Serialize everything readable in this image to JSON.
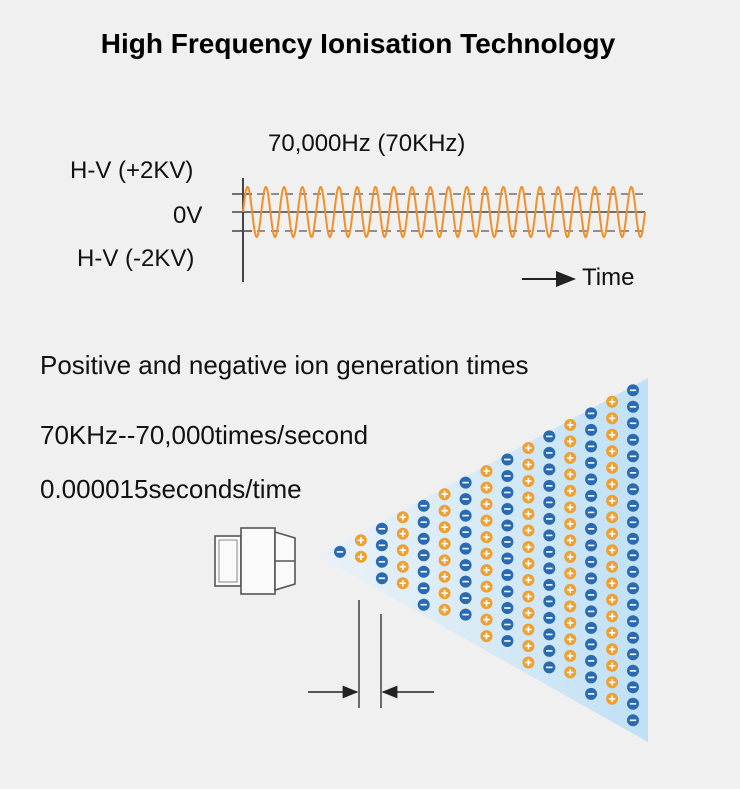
{
  "title": "High Frequency Ionisation Technology",
  "waveform": {
    "frequency_label": "70,000Hz (70KHz)",
    "positive_label": "H-V (+2KV)",
    "zero_label": "0V",
    "negative_label": "H-V (-2KV)",
    "time_label": "Time",
    "wave_color": "#f0902a",
    "axis_color": "#444444",
    "cycles": 22
  },
  "ion_generation": {
    "heading": "Positive and negative ion generation times",
    "rate_text": "70KHz--70,000times/second",
    "period_text": "0.000015seconds/time",
    "positive_color": "#f0a030",
    "negative_color": "#2a6ab0",
    "beam_color": "#bfe0f5"
  }
}
